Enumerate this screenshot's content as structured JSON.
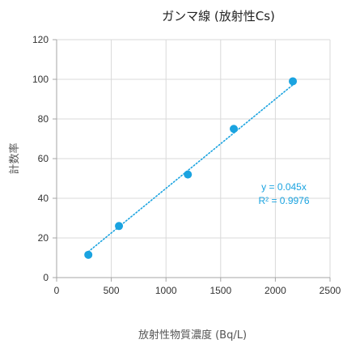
{
  "chart_data": {
    "type": "scatter",
    "title": "ガンマ線 (放射性Cs)",
    "xlabel": "放射性物質濃度 (Bq/L)",
    "ylabel": "計数率",
    "xlim": [
      0,
      2500
    ],
    "ylim": [
      0,
      120
    ],
    "x_ticks": [
      "0",
      "500",
      "1000",
      "1500",
      "2000",
      "2500"
    ],
    "y_ticks": [
      "0",
      "20",
      "40",
      "60",
      "80",
      "100",
      "120"
    ],
    "grid": true,
    "series": [
      {
        "x": [
          290,
          570,
          1200,
          1620,
          2160
        ],
        "y": [
          11.5,
          26,
          52,
          75,
          99
        ]
      }
    ],
    "trendline": {
      "type": "linear-through-origin",
      "slope": 0.045,
      "x_range": [
        290,
        2160
      ],
      "equation": "y = 0.045x",
      "r_squared": "R² = 0.9976"
    },
    "colors": {
      "marker": "#1aa3e0",
      "trendline": "#1aa3e0",
      "grid": "#d9d9d9",
      "axis": "#a6a6a6"
    }
  }
}
